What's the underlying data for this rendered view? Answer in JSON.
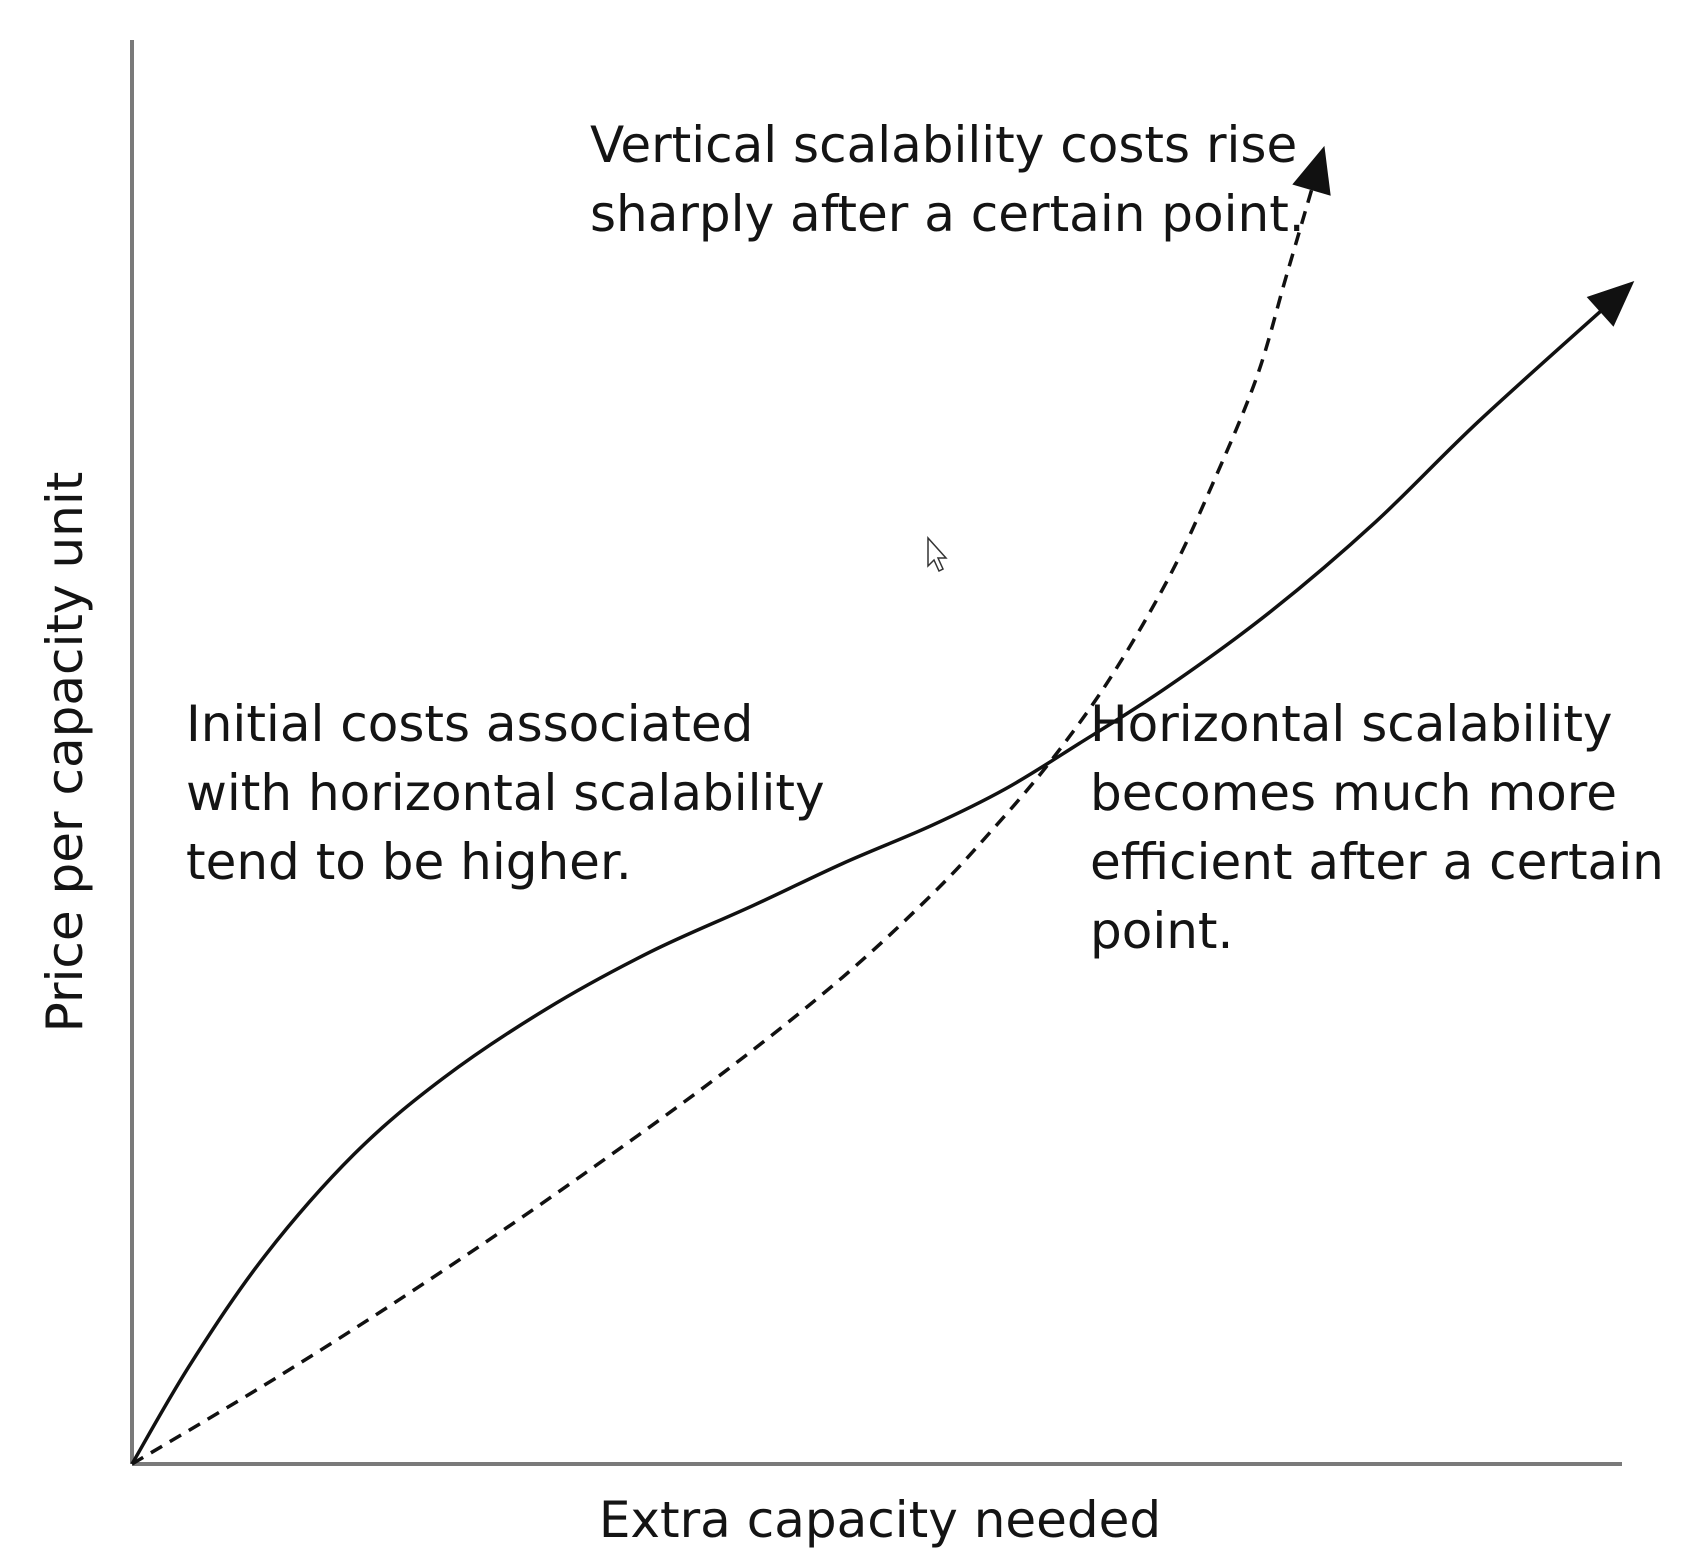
{
  "chart_data": {
    "type": "line",
    "xlabel": "Extra capacity needed",
    "ylabel": "Price per capacity unit",
    "grid": false,
    "ticks": false,
    "xlim": [
      0,
      100
    ],
    "ylim": [
      0,
      100
    ],
    "series": [
      {
        "style": "solid",
        "color": "#111111",
        "arrow_end": true,
        "points": [
          [
            0,
            0
          ],
          [
            4,
            8
          ],
          [
            9,
            16.5
          ],
          [
            15,
            24.5
          ],
          [
            21,
            30.5
          ],
          [
            28,
            36
          ],
          [
            35,
            40.5
          ],
          [
            42,
            44.2
          ],
          [
            48,
            47.5
          ],
          [
            54,
            50.5
          ],
          [
            59,
            53.4
          ],
          [
            64,
            57
          ],
          [
            70,
            61.5
          ],
          [
            77,
            67.5
          ],
          [
            84,
            74.5
          ],
          [
            91,
            82.5
          ],
          [
            100,
            92
          ]
        ]
      },
      {
        "style": "dashed",
        "color": "#111111",
        "arrow_end": true,
        "points": [
          [
            0,
            0
          ],
          [
            10,
            7
          ],
          [
            20,
            14.5
          ],
          [
            30,
            22.5
          ],
          [
            40,
            31
          ],
          [
            48,
            38.5
          ],
          [
            54,
            45
          ],
          [
            58,
            50
          ],
          [
            62,
            55.5
          ],
          [
            66,
            62
          ],
          [
            70,
            70
          ],
          [
            73,
            77.5
          ],
          [
            76,
            86
          ],
          [
            78,
            94
          ],
          [
            80,
            102
          ]
        ]
      }
    ],
    "annotations": [
      {
        "lines": [
          "Vertical scalability costs rise",
          "sharply after a certain point."
        ]
      },
      {
        "lines": [
          "Initial costs associated",
          "with horizontal scalability",
          "tend to be higher."
        ]
      },
      {
        "lines": [
          "Horizontal scalability",
          "becomes much more",
          "efficient after a certain",
          "point."
        ]
      }
    ]
  }
}
